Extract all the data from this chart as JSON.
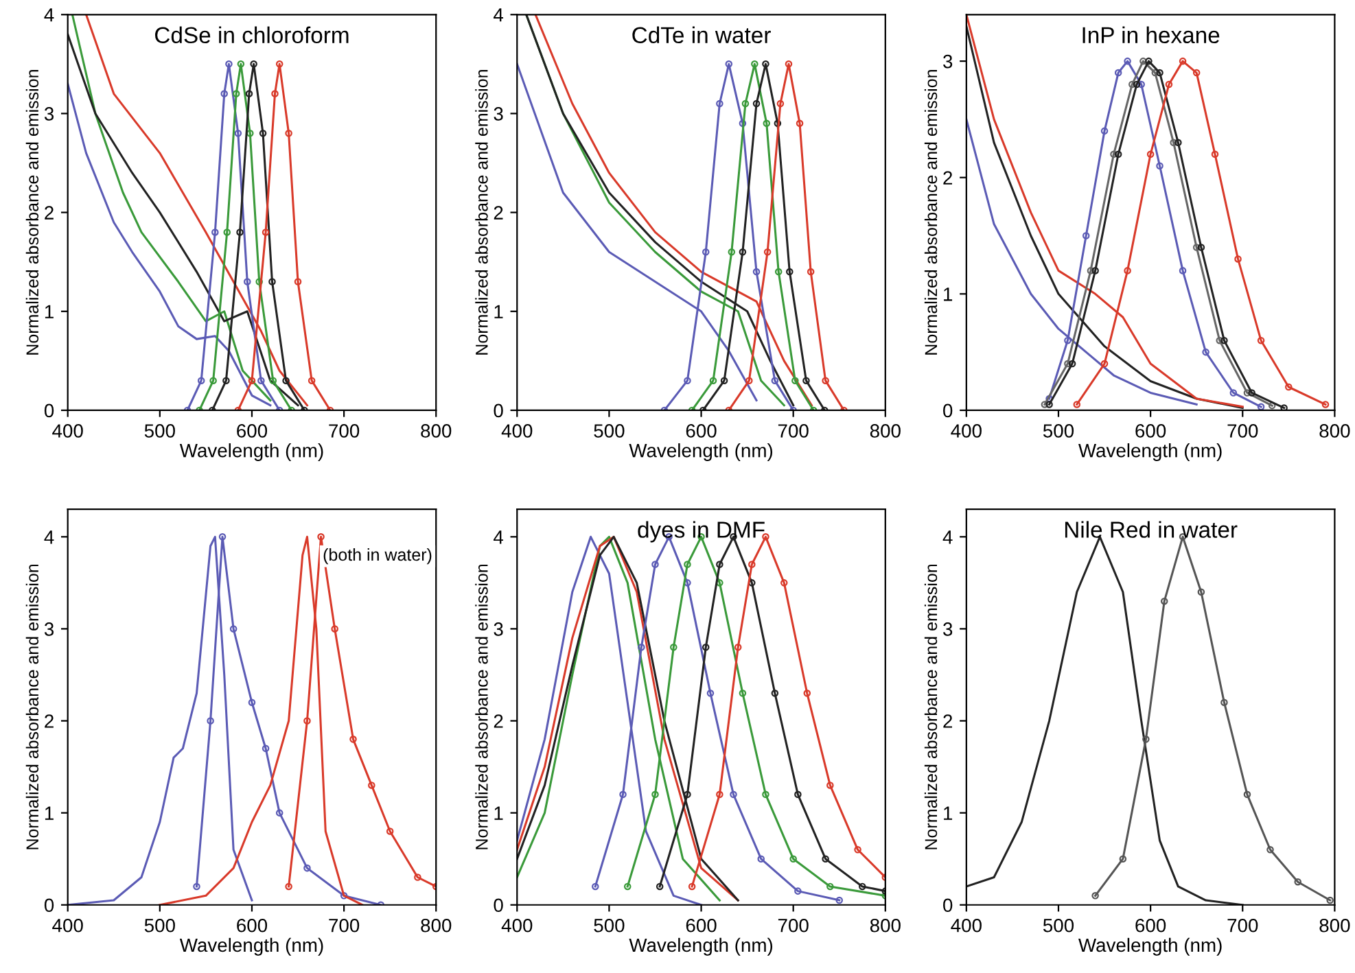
{
  "chart_data": [
    {
      "type": "line",
      "title": "CdSe in chloroform",
      "xlabel": "Wavelength (nm)",
      "ylabel": "Normalized absorbance and emission",
      "xlim": [
        400,
        800
      ],
      "ylim": [
        0,
        4
      ],
      "xticks": [
        400,
        500,
        600,
        700,
        800
      ],
      "yticks": [
        0,
        1,
        2,
        3,
        4
      ],
      "series": [
        {
          "color": "#5b5bb5",
          "marker": "none",
          "x": [
            400,
            420,
            450,
            470,
            500,
            520,
            540,
            560,
            575,
            600,
            620
          ],
          "values": [
            3.3,
            2.6,
            1.9,
            1.6,
            1.2,
            0.85,
            0.72,
            0.75,
            0.6,
            0.15,
            0.05
          ]
        },
        {
          "color": "#3a9a3a",
          "marker": "none",
          "x": [
            405,
            430,
            460,
            480,
            520,
            550,
            570,
            590,
            620
          ],
          "values": [
            4.0,
            3.0,
            2.2,
            1.8,
            1.3,
            0.9,
            1.0,
            0.4,
            0.1
          ]
        },
        {
          "color": "#222222",
          "marker": "none",
          "x": [
            400,
            430,
            470,
            500,
            540,
            570,
            595,
            620,
            650
          ],
          "values": [
            3.8,
            3.0,
            2.4,
            2.0,
            1.4,
            0.9,
            1.0,
            0.3,
            0.05
          ]
        },
        {
          "color": "#d93a2a",
          "marker": "none",
          "x": [
            420,
            450,
            500,
            550,
            580,
            610,
            630,
            660
          ],
          "values": [
            4.0,
            3.2,
            2.6,
            1.8,
            1.3,
            0.8,
            0.4,
            0.05
          ]
        },
        {
          "color": "#5b5bb5",
          "marker": "circle",
          "x": [
            530,
            545,
            560,
            570,
            575,
            585,
            595,
            610,
            630
          ],
          "values": [
            0,
            0.3,
            1.8,
            3.2,
            3.5,
            2.8,
            1.3,
            0.3,
            0
          ]
        },
        {
          "color": "#3a9a3a",
          "marker": "circle",
          "x": [
            543,
            558,
            573,
            583,
            588,
            598,
            608,
            623,
            643
          ],
          "values": [
            0,
            0.3,
            1.8,
            3.2,
            3.5,
            2.8,
            1.3,
            0.3,
            0
          ]
        },
        {
          "color": "#222222",
          "marker": "circle",
          "x": [
            557,
            572,
            587,
            597,
            602,
            612,
            622,
            637,
            657
          ],
          "values": [
            0,
            0.3,
            1.8,
            3.2,
            3.5,
            2.8,
            1.3,
            0.3,
            0
          ]
        },
        {
          "color": "#d93a2a",
          "marker": "circle",
          "x": [
            585,
            600,
            615,
            625,
            630,
            640,
            650,
            665,
            685
          ],
          "values": [
            0,
            0.3,
            1.8,
            3.2,
            3.5,
            2.8,
            1.3,
            0.3,
            0
          ]
        }
      ]
    },
    {
      "type": "line",
      "title": "CdTe in water",
      "xlabel": "Wavelength (nm)",
      "ylabel": "Normalized absorbance and emission",
      "xlim": [
        400,
        800
      ],
      "ylim": [
        0,
        4
      ],
      "xticks": [
        400,
        500,
        600,
        700,
        800
      ],
      "yticks": [
        0,
        1,
        2,
        3,
        4
      ],
      "series": [
        {
          "color": "#5b5bb5",
          "marker": "none",
          "x": [
            400,
            450,
            500,
            550,
            600,
            630,
            660
          ],
          "values": [
            3.5,
            2.2,
            1.6,
            1.3,
            1.0,
            0.6,
            0.1
          ]
        },
        {
          "color": "#3a9a3a",
          "marker": "none",
          "x": [
            410,
            450,
            500,
            550,
            600,
            640,
            665,
            690
          ],
          "values": [
            4.0,
            3.0,
            2.1,
            1.6,
            1.2,
            1.0,
            0.3,
            0.05
          ]
        },
        {
          "color": "#222222",
          "marker": "none",
          "x": [
            410,
            450,
            500,
            550,
            600,
            650,
            675,
            700
          ],
          "values": [
            4.0,
            3.0,
            2.2,
            1.7,
            1.3,
            1.0,
            0.5,
            0.05
          ]
        },
        {
          "color": "#d93a2a",
          "marker": "none",
          "x": [
            420,
            460,
            500,
            550,
            600,
            660,
            690,
            720
          ],
          "values": [
            4.0,
            3.1,
            2.4,
            1.8,
            1.4,
            1.1,
            0.5,
            0.05
          ]
        },
        {
          "color": "#5b5bb5",
          "marker": "circle",
          "x": [
            560,
            585,
            605,
            620,
            630,
            645,
            660,
            680,
            700
          ],
          "values": [
            0,
            0.3,
            1.6,
            3.1,
            3.5,
            2.9,
            1.4,
            0.3,
            0
          ]
        },
        {
          "color": "#3a9a3a",
          "marker": "circle",
          "x": [
            590,
            613,
            633,
            648,
            658,
            671,
            684,
            702,
            722
          ],
          "values": [
            0,
            0.3,
            1.6,
            3.1,
            3.5,
            2.9,
            1.4,
            0.3,
            0
          ]
        },
        {
          "color": "#222222",
          "marker": "circle",
          "x": [
            602,
            625,
            645,
            660,
            670,
            683,
            696,
            714,
            734
          ],
          "values": [
            0,
            0.3,
            1.6,
            3.1,
            3.5,
            2.9,
            1.4,
            0.3,
            0
          ]
        },
        {
          "color": "#d93a2a",
          "marker": "circle",
          "x": [
            630,
            652,
            672,
            686,
            695,
            707,
            719,
            735,
            755
          ],
          "values": [
            0,
            0.3,
            1.6,
            3.1,
            3.5,
            2.9,
            1.4,
            0.3,
            0
          ]
        }
      ]
    },
    {
      "type": "line",
      "title": "InP in hexane",
      "xlabel": "Wavelength (nm)",
      "ylabel": "Normalized absorbance and emission",
      "xlim": [
        400,
        800
      ],
      "ylim": [
        0,
        3.4
      ],
      "xticks": [
        400,
        500,
        600,
        700,
        800
      ],
      "yticks": [
        0,
        1,
        2,
        3
      ],
      "series": [
        {
          "color": "#5b5bb5",
          "marker": "none",
          "x": [
            400,
            430,
            470,
            500,
            530,
            560,
            600,
            650
          ],
          "values": [
            2.5,
            1.6,
            1.0,
            0.7,
            0.5,
            0.3,
            0.15,
            0.05
          ]
        },
        {
          "color": "#222222",
          "marker": "none",
          "x": [
            400,
            430,
            470,
            500,
            550,
            600,
            650,
            700
          ],
          "values": [
            3.3,
            2.3,
            1.5,
            1.0,
            0.55,
            0.25,
            0.1,
            0.02
          ]
        },
        {
          "color": "#d93a2a",
          "marker": "none",
          "x": [
            400,
            430,
            470,
            500,
            540,
            570,
            600,
            650,
            700
          ],
          "values": [
            3.4,
            2.5,
            1.7,
            1.2,
            1.0,
            0.8,
            0.4,
            0.1,
            0.03
          ]
        },
        {
          "color": "#5b5bb5",
          "marker": "circle",
          "x": [
            490,
            510,
            530,
            550,
            565,
            575,
            590,
            610,
            635,
            660,
            690,
            720
          ],
          "values": [
            0.1,
            0.6,
            1.5,
            2.4,
            2.9,
            3.0,
            2.8,
            2.1,
            1.2,
            0.5,
            0.15,
            0.03
          ]
        },
        {
          "color": "#666666",
          "marker": "circle",
          "x": [
            485,
            510,
            535,
            560,
            580,
            592,
            605,
            625,
            650,
            675,
            705,
            732
          ],
          "values": [
            0.05,
            0.4,
            1.2,
            2.2,
            2.8,
            3.0,
            2.9,
            2.3,
            1.4,
            0.6,
            0.15,
            0.04
          ]
        },
        {
          "color": "#222222",
          "marker": "circle",
          "x": [
            490,
            515,
            540,
            565,
            585,
            598,
            610,
            630,
            655,
            680,
            710,
            745
          ],
          "values": [
            0.05,
            0.4,
            1.2,
            2.2,
            2.8,
            3.0,
            2.9,
            2.3,
            1.4,
            0.6,
            0.15,
            0.02
          ]
        },
        {
          "color": "#d93a2a",
          "marker": "circle",
          "x": [
            520,
            550,
            575,
            600,
            620,
            635,
            650,
            670,
            695,
            720,
            750,
            790
          ],
          "values": [
            0.05,
            0.4,
            1.2,
            2.2,
            2.8,
            3.0,
            2.9,
            2.2,
            1.3,
            0.6,
            0.2,
            0.05
          ]
        }
      ]
    },
    {
      "type": "line",
      "xlabel": "Wavelength (nm)",
      "ylabel": "Normalized absorbance and emission",
      "xlim": [
        400,
        800
      ],
      "ylim": [
        0,
        4.3
      ],
      "xticks": [
        400,
        500,
        600,
        700,
        800
      ],
      "yticks": [
        0,
        1,
        2,
        3,
        4
      ],
      "annotations": [
        "(both in water)"
      ],
      "series": [
        {
          "color": "#5b5bb5",
          "marker": "none",
          "x": [
            400,
            450,
            480,
            500,
            515,
            525,
            540,
            555,
            560,
            570,
            580,
            600
          ],
          "values": [
            0,
            0.05,
            0.3,
            0.9,
            1.6,
            1.7,
            2.3,
            3.9,
            4.0,
            2.5,
            0.6,
            0.05
          ]
        },
        {
          "color": "#5b5bb5",
          "marker": "circle",
          "x": [
            540,
            555,
            568,
            580,
            600,
            615,
            630,
            660,
            700,
            740
          ],
          "values": [
            0.2,
            2.0,
            4.0,
            3.0,
            2.2,
            1.7,
            1.0,
            0.4,
            0.1,
            0
          ]
        },
        {
          "color": "#d93a2a",
          "marker": "none",
          "x": [
            500,
            550,
            580,
            600,
            620,
            640,
            655,
            660,
            670,
            680,
            700,
            720
          ],
          "values": [
            0,
            0.1,
            0.4,
            0.9,
            1.3,
            2.0,
            3.8,
            4.0,
            3.0,
            0.8,
            0.1,
            0
          ]
        },
        {
          "color": "#d93a2a",
          "marker": "circle",
          "x": [
            640,
            660,
            675,
            690,
            710,
            730,
            750,
            780,
            800
          ],
          "values": [
            0.2,
            2.0,
            4.0,
            3.0,
            1.8,
            1.3,
            0.8,
            0.3,
            0.2
          ]
        }
      ]
    },
    {
      "type": "line",
      "title": "dyes in DMF",
      "xlabel": "Wavelength (nm)",
      "ylabel": "Normalized absorbance and emission",
      "xlim": [
        400,
        800
      ],
      "ylim": [
        0,
        4.3
      ],
      "xticks": [
        400,
        500,
        600,
        700,
        800
      ],
      "yticks": [
        0,
        1,
        2,
        3,
        4
      ],
      "series": [
        {
          "color": "#5b5bb5",
          "marker": "none",
          "x": [
            400,
            430,
            460,
            480,
            500,
            520,
            540,
            570,
            600
          ],
          "values": [
            0.7,
            1.8,
            3.4,
            4.0,
            3.6,
            2.2,
            0.8,
            0.1,
            0
          ]
        },
        {
          "color": "#3a9a3a",
          "marker": "none",
          "x": [
            400,
            430,
            460,
            490,
            500,
            520,
            550,
            580,
            620
          ],
          "values": [
            0.3,
            1.0,
            2.5,
            3.9,
            4.0,
            3.5,
            1.8,
            0.5,
            0.05
          ]
        },
        {
          "color": "#d93a2a",
          "marker": "none",
          "x": [
            400,
            430,
            460,
            490,
            505,
            530,
            560,
            600,
            640
          ],
          "values": [
            0.6,
            1.5,
            2.9,
            3.9,
            4.0,
            3.4,
            1.8,
            0.4,
            0.05
          ]
        },
        {
          "color": "#222222",
          "marker": "none",
          "x": [
            400,
            430,
            460,
            490,
            505,
            530,
            560,
            600,
            640
          ],
          "values": [
            0.5,
            1.3,
            2.6,
            3.8,
            4.0,
            3.5,
            2.0,
            0.5,
            0.05
          ]
        },
        {
          "color": "#5b5bb5",
          "marker": "circle",
          "x": [
            485,
            515,
            535,
            550,
            565,
            585,
            610,
            635,
            665,
            705,
            750
          ],
          "values": [
            0.2,
            1.2,
            2.8,
            3.7,
            4.0,
            3.5,
            2.3,
            1.2,
            0.5,
            0.15,
            0.05
          ]
        },
        {
          "color": "#3a9a3a",
          "marker": "circle",
          "x": [
            520,
            550,
            570,
            585,
            600,
            620,
            645,
            670,
            700,
            740,
            800
          ],
          "values": [
            0.2,
            1.2,
            2.8,
            3.7,
            4.0,
            3.5,
            2.3,
            1.2,
            0.5,
            0.2,
            0.1
          ]
        },
        {
          "color": "#222222",
          "marker": "circle",
          "x": [
            555,
            585,
            605,
            620,
            635,
            655,
            680,
            705,
            735,
            775,
            800
          ],
          "values": [
            0.2,
            1.2,
            2.8,
            3.7,
            4.0,
            3.5,
            2.3,
            1.2,
            0.5,
            0.2,
            0.15
          ]
        },
        {
          "color": "#d93a2a",
          "marker": "circle",
          "x": [
            590,
            620,
            640,
            655,
            670,
            690,
            715,
            740,
            770,
            800
          ],
          "values": [
            0.2,
            1.2,
            2.8,
            3.7,
            4.0,
            3.5,
            2.3,
            1.3,
            0.6,
            0.3
          ]
        }
      ]
    },
    {
      "type": "line",
      "title": "Nile Red in water",
      "xlabel": "Wavelength (nm)",
      "ylabel": "Normalized absorbance and emission",
      "xlim": [
        400,
        800
      ],
      "ylim": [
        0,
        4.3
      ],
      "xticks": [
        400,
        500,
        600,
        700,
        800
      ],
      "yticks": [
        0,
        1,
        2,
        3,
        4
      ],
      "series": [
        {
          "color": "#222222",
          "marker": "none",
          "x": [
            400,
            430,
            460,
            490,
            520,
            545,
            570,
            590,
            610,
            630,
            660,
            700
          ],
          "values": [
            0.2,
            0.3,
            0.9,
            2.0,
            3.4,
            4.0,
            3.4,
            2.0,
            0.7,
            0.2,
            0.05,
            0
          ]
        },
        {
          "color": "#555555",
          "marker": "circle",
          "x": [
            540,
            570,
            595,
            615,
            635,
            655,
            680,
            705,
            730,
            760,
            795
          ],
          "values": [
            0.1,
            0.5,
            1.8,
            3.3,
            4.0,
            3.4,
            2.2,
            1.2,
            0.6,
            0.25,
            0.05
          ]
        }
      ]
    }
  ]
}
